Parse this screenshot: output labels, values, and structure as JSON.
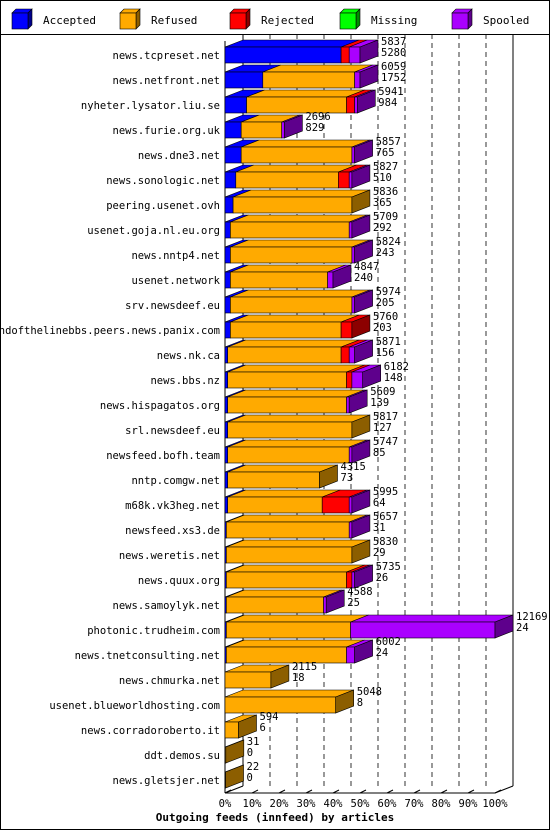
{
  "colors": {
    "accepted": "#0000ff",
    "refused": "#ffaa00",
    "rejected": "#ff0000",
    "missing": "#00ff00",
    "spooled": "#aa00ff",
    "background": "#ffffff",
    "axis": "#000000"
  },
  "chart_data": {
    "type": "bar",
    "orientation": "horizontal",
    "stacked": true,
    "xlabel": "Outgoing feeds (innfeed) by articles",
    "xlim": [
      0,
      100
    ],
    "x_unit": "%",
    "x_ticks": [
      "0%",
      "10%",
      "20%",
      "30%",
      "40%",
      "50%",
      "60%",
      "70%",
      "80%",
      "90%",
      "100%"
    ],
    "grid": "vertical dashed",
    "legend_position": "top",
    "legend": [
      {
        "key": "accepted",
        "label": "Accepted"
      },
      {
        "key": "refused",
        "label": "Refused"
      },
      {
        "key": "rejected",
        "label": "Rejected"
      },
      {
        "key": "missing",
        "label": "Missing"
      },
      {
        "key": "spooled",
        "label": "Spooled"
      }
    ],
    "rows": [
      {
        "name": "news.tcpreset.net",
        "offered": "5837",
        "accepted_count": "5280",
        "accepted": 43,
        "refused": 0,
        "rejected": 3,
        "missing": 0,
        "spooled": 4
      },
      {
        "name": "news.netfront.net",
        "offered": "6059",
        "accepted_count": "1752",
        "accepted": 14,
        "refused": 34,
        "rejected": 0,
        "missing": 0,
        "spooled": 2
      },
      {
        "name": "nyheter.lysator.liu.se",
        "offered": "5941",
        "accepted_count": "984",
        "accepted": 8,
        "refused": 37,
        "rejected": 3,
        "missing": 0,
        "spooled": 1
      },
      {
        "name": "news.furie.org.uk",
        "offered": "2696",
        "accepted_count": "829",
        "accepted": 6,
        "refused": 15,
        "rejected": 0,
        "missing": 0,
        "spooled": 1
      },
      {
        "name": "news.dne3.net",
        "offered": "5857",
        "accepted_count": "765",
        "accepted": 6,
        "refused": 41,
        "rejected": 0,
        "missing": 0,
        "spooled": 1
      },
      {
        "name": "news.sonologic.net",
        "offered": "5827",
        "accepted_count": "510",
        "accepted": 4,
        "refused": 38,
        "rejected": 4,
        "missing": 0,
        "spooled": 1
      },
      {
        "name": "peering.usenet.ovh",
        "offered": "5836",
        "accepted_count": "365",
        "accepted": 3,
        "refused": 44,
        "rejected": 0,
        "missing": 0,
        "spooled": 0
      },
      {
        "name": "usenet.goja.nl.eu.org",
        "offered": "5709",
        "accepted_count": "292",
        "accepted": 2,
        "refused": 44,
        "rejected": 0,
        "missing": 0,
        "spooled": 1
      },
      {
        "name": "news.nntp4.net",
        "offered": "5824",
        "accepted_count": "243",
        "accepted": 2,
        "refused": 45,
        "rejected": 0,
        "missing": 0,
        "spooled": 1
      },
      {
        "name": "usenet.network",
        "offered": "4847",
        "accepted_count": "240",
        "accepted": 2,
        "refused": 36,
        "rejected": 0,
        "missing": 0,
        "spooled": 2
      },
      {
        "name": "srv.newsdeef.eu",
        "offered": "5974",
        "accepted_count": "205",
        "accepted": 2,
        "refused": 45,
        "rejected": 0,
        "missing": 0,
        "spooled": 1
      },
      {
        "name": "endofthelinebbs.peers.news.panix.com",
        "offered": "5760",
        "accepted_count": "203",
        "accepted": 2,
        "refused": 41,
        "rejected": 4,
        "missing": 0,
        "spooled": 0
      },
      {
        "name": "news.nk.ca",
        "offered": "5871",
        "accepted_count": "156",
        "accepted": 1,
        "refused": 42,
        "rejected": 3,
        "missing": 0,
        "spooled": 2
      },
      {
        "name": "news.bbs.nz",
        "offered": "6182",
        "accepted_count": "148",
        "accepted": 1,
        "refused": 44,
        "rejected": 2,
        "missing": 0,
        "spooled": 4
      },
      {
        "name": "news.hispagatos.org",
        "offered": "5609",
        "accepted_count": "139",
        "accepted": 1,
        "refused": 44,
        "rejected": 0,
        "missing": 0,
        "spooled": 1
      },
      {
        "name": "srl.newsdeef.eu",
        "offered": "5817",
        "accepted_count": "127",
        "accepted": 1,
        "refused": 46,
        "rejected": 0,
        "missing": 0,
        "spooled": 0
      },
      {
        "name": "newsfeed.bofh.team",
        "offered": "5747",
        "accepted_count": "85",
        "accepted": 1,
        "refused": 45,
        "rejected": 0,
        "missing": 0,
        "spooled": 1
      },
      {
        "name": "nntp.comgw.net",
        "offered": "4315",
        "accepted_count": "73",
        "accepted": 1,
        "refused": 34,
        "rejected": 0,
        "missing": 0,
        "spooled": 0
      },
      {
        "name": "m68k.vk3heg.net",
        "offered": "5995",
        "accepted_count": "64",
        "accepted": 1,
        "refused": 35,
        "rejected": 10,
        "missing": 0,
        "spooled": 1
      },
      {
        "name": "newsfeed.xs3.de",
        "offered": "5657",
        "accepted_count": "31",
        "accepted": 0.5,
        "refused": 45.5,
        "rejected": 0,
        "missing": 0,
        "spooled": 1
      },
      {
        "name": "news.weretis.net",
        "offered": "5830",
        "accepted_count": "29",
        "accepted": 0.5,
        "refused": 46.5,
        "rejected": 0,
        "missing": 0,
        "spooled": 0
      },
      {
        "name": "news.quux.org",
        "offered": "5735",
        "accepted_count": "26",
        "accepted": 0.5,
        "refused": 44.5,
        "rejected": 2,
        "missing": 0,
        "spooled": 1
      },
      {
        "name": "news.samoylyk.net",
        "offered": "4588",
        "accepted_count": "25",
        "accepted": 0.5,
        "refused": 36,
        "rejected": 0,
        "missing": 0,
        "spooled": 1
      },
      {
        "name": "photonic.trudheim.com",
        "offered": "12169",
        "accepted_count": "24",
        "accepted": 0.5,
        "refused": 46,
        "rejected": 0,
        "missing": 0,
        "spooled": 53.5
      },
      {
        "name": "news.tnetconsulting.net",
        "offered": "6002",
        "accepted_count": "24",
        "accepted": 0.5,
        "refused": 44.5,
        "rejected": 0,
        "missing": 0,
        "spooled": 3
      },
      {
        "name": "news.chmurka.net",
        "offered": "2115",
        "accepted_count": "18",
        "accepted": 0,
        "refused": 17,
        "rejected": 0,
        "missing": 0,
        "spooled": 0
      },
      {
        "name": "usenet.blueworldhosting.com",
        "offered": "5048",
        "accepted_count": "8",
        "accepted": 0,
        "refused": 41,
        "rejected": 0,
        "missing": 0,
        "spooled": 0
      },
      {
        "name": "news.corradoroberto.it",
        "offered": "594",
        "accepted_count": "6",
        "accepted": 0,
        "refused": 5,
        "rejected": 0,
        "missing": 0,
        "spooled": 0
      },
      {
        "name": "ddt.demos.su",
        "offered": "31",
        "accepted_count": "0",
        "accepted": 0,
        "refused": 0.3,
        "rejected": 0,
        "missing": 0,
        "spooled": 0
      },
      {
        "name": "news.gletsjer.net",
        "offered": "22",
        "accepted_count": "0",
        "accepted": 0,
        "refused": 0.2,
        "rejected": 0,
        "missing": 0,
        "spooled": 0
      }
    ]
  }
}
